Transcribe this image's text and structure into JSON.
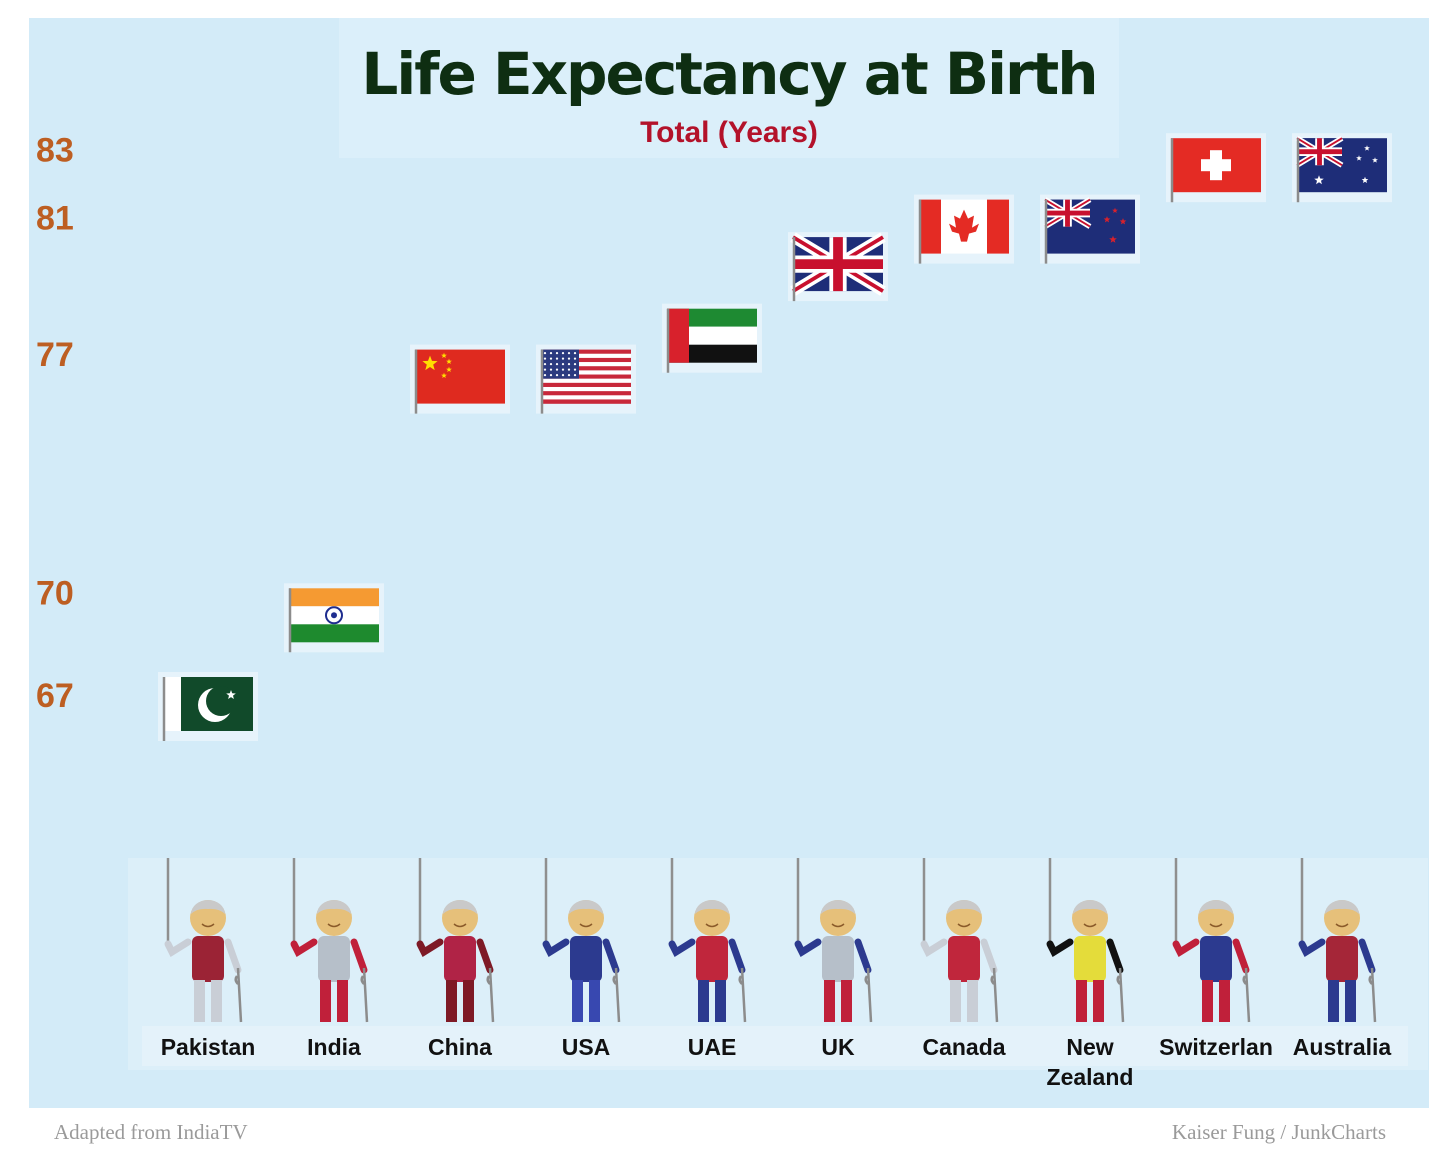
{
  "chart_data": {
    "type": "scatter",
    "title": "Life Expectancy at Birth",
    "subtitle": "Total (Years)",
    "xlabel": "",
    "ylabel": "",
    "categories": [
      "Pakistan",
      "India",
      "China",
      "USA",
      "UAE",
      "UK",
      "Canada",
      "New Zealand",
      "Switzerlan",
      "Australia"
    ],
    "category_lines": [
      [
        "Pakistan"
      ],
      [
        "India"
      ],
      [
        "China"
      ],
      [
        "USA"
      ],
      [
        "UAE"
      ],
      [
        "UK"
      ],
      [
        "Canada"
      ],
      [
        "New",
        "Zealand"
      ],
      [
        "Switzerlan"
      ],
      [
        "Australia"
      ]
    ],
    "values": [
      67,
      69.6,
      76.6,
      76.6,
      77.8,
      79.9,
      81,
      81,
      82.8,
      82.8
    ],
    "y_ticks": [
      67,
      70,
      77,
      81,
      83
    ],
    "y_tick_labels": [
      "67",
      "70",
      "77",
      "81",
      "83"
    ],
    "ylim": [
      67,
      83
    ],
    "markers": [
      "flag-pakistan",
      "flag-india",
      "flag-china",
      "flag-usa",
      "flag-uae",
      "flag-uk",
      "flag-canada",
      "flag-new-zealand",
      "flag-switzerland",
      "flag-australia"
    ],
    "figure_icon": "elderly-person-with-cane-icon",
    "grid": false,
    "legend": "none"
  },
  "colors": {
    "background": "#d3ebf8",
    "title": "#0e2e12",
    "subtitle": "#b3122a",
    "tick_labels": "#bd5e22",
    "figures": [
      {
        "shirt": "#9b2335",
        "sleeve": "#c9ced6",
        "pants": "#c9ced6"
      },
      {
        "shirt": "#b6bfc9",
        "sleeve": "#c0203a",
        "pants": "#c0203a"
      },
      {
        "shirt": "#b02346",
        "sleeve": "#7e1a26",
        "pants": "#7e1a26"
      },
      {
        "shirt": "#2c3a8f",
        "sleeve": "#2c3a8f",
        "pants": "#3848b0"
      },
      {
        "shirt": "#c0263c",
        "sleeve": "#2c3a8f",
        "pants": "#2c3a8f"
      },
      {
        "shirt": "#b6bfc9",
        "sleeve": "#2c3a8f",
        "pants": "#c0203a"
      },
      {
        "shirt": "#c0263c",
        "sleeve": "#c9ced6",
        "pants": "#c9ced6"
      },
      {
        "shirt": "#e4dc3a",
        "sleeve": "#111111",
        "pants": "#c0203a"
      },
      {
        "shirt": "#2c3a8f",
        "sleeve": "#c0203a",
        "pants": "#c0203a"
      },
      {
        "shirt": "#a52638",
        "sleeve": "#2c3a8f",
        "pants": "#2c3a8f"
      }
    ]
  },
  "credits": {
    "left": "Adapted from IndiaTV",
    "right": "Kaiser Fung / JunkCharts"
  }
}
